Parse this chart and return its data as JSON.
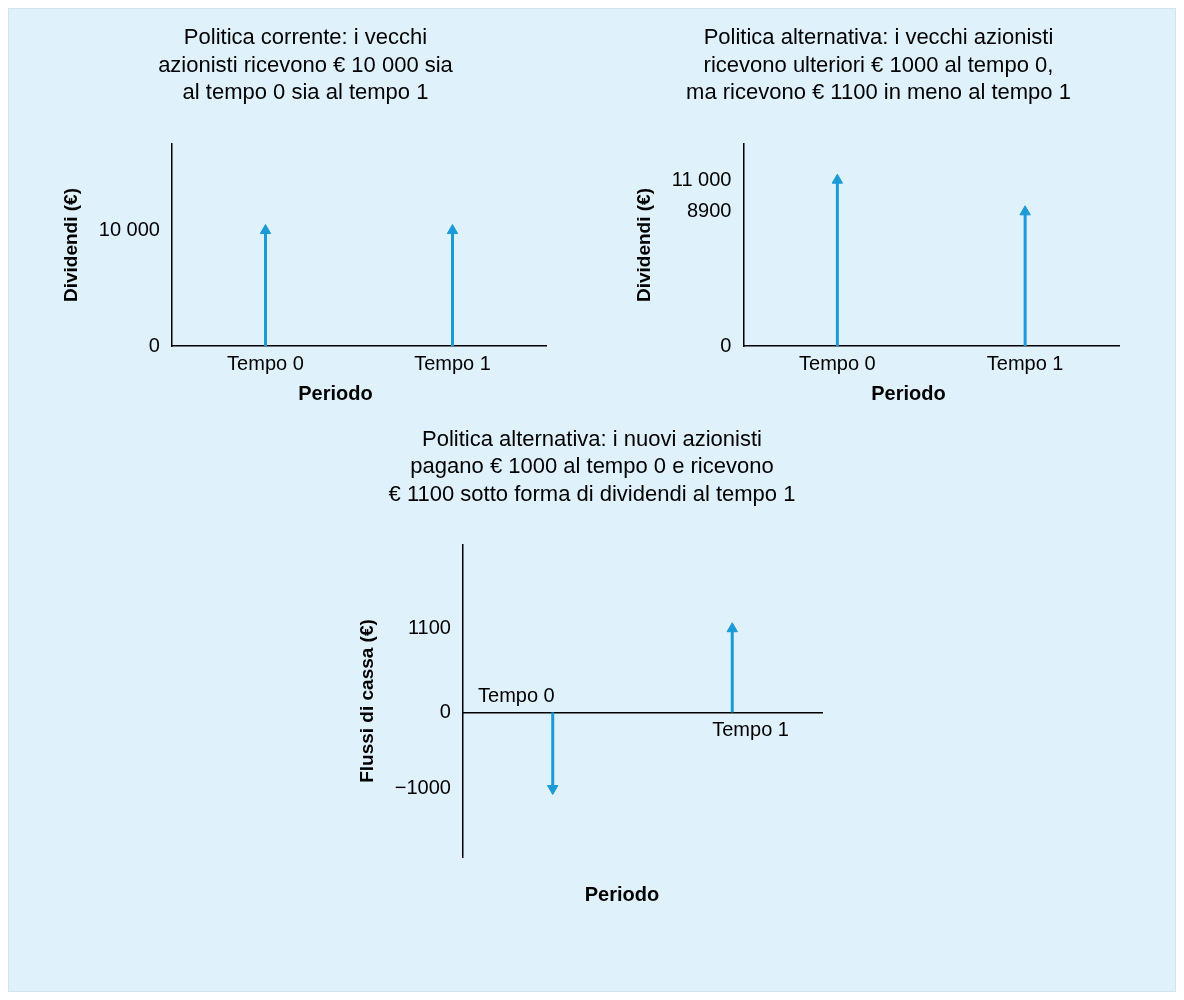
{
  "chart_data": [
    {
      "type": "lollipop",
      "title": "Politica corrente: i vecchi\nazionisti ricevono € 10 000 sia\nal tempo 0 sia al tempo 1",
      "xlabel": "Periodo",
      "ylabel": "Dividendi (€)",
      "categories": [
        "Tempo 0",
        "Tempo 1"
      ],
      "values": [
        10000,
        10000
      ],
      "color": "#1b9ad6",
      "marker": "triangle",
      "ylim": [
        0,
        17500
      ],
      "yticks": [
        0,
        {
          "value": 10000,
          "label": "10 000"
        }
      ]
    },
    {
      "type": "lollipop",
      "title": "Politica alternativa: i vecchi azionisti\nricevono ulteriori € 1000 al tempo 0,\nma ricevono € 1100 in meno al tempo 1",
      "xlabel": "Periodo",
      "ylabel": "Dividendi (€)",
      "categories": [
        "Tempo 0",
        "Tempo 1"
      ],
      "values": [
        11000,
        8900
      ],
      "color": "#1b9ad6",
      "marker": "triangle",
      "ylim": [
        0,
        13400
      ],
      "yticks": [
        0,
        8900,
        {
          "value": 11000,
          "label": "11 000"
        }
      ]
    },
    {
      "type": "lollipop",
      "title": "Politica alternativa: i nuovi azionisti\npagano € 1000 al tempo 0 e ricevono\n€ 1100 sotto forma di dividendi al tempo 1",
      "xlabel": "Periodo",
      "ylabel": "Flussi di cassa (€)",
      "categories": [
        "Tempo 0",
        "Tempo 1"
      ],
      "values": [
        -1000,
        1100
      ],
      "color": "#1b9ad6",
      "marker": "triangle",
      "ylim": [
        -1900,
        2200
      ],
      "yticks": [
        {
          "value": -1000,
          "label": "−1000"
        },
        0,
        1100
      ]
    }
  ]
}
